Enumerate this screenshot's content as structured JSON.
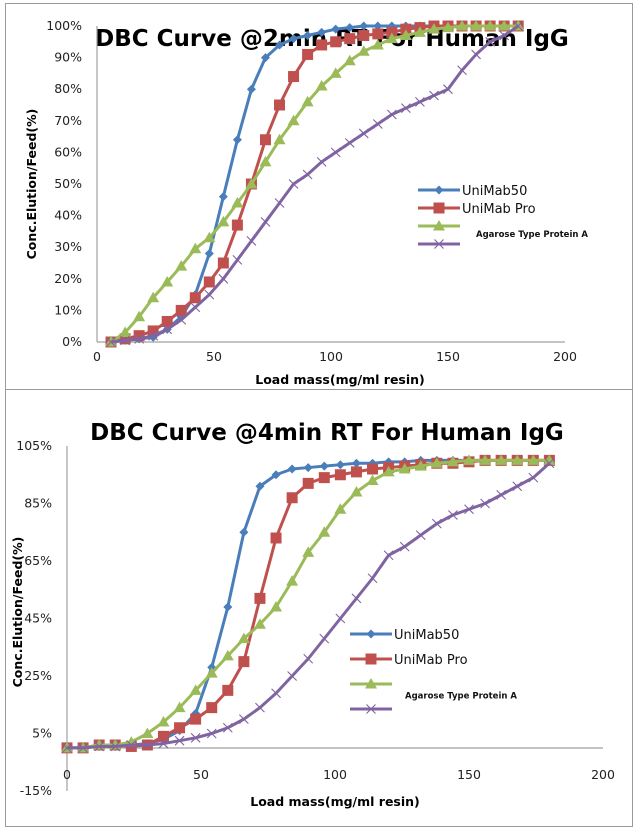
{
  "chart_data": [
    {
      "type": "line",
      "title": "DBC Curve @2min RT For Human IgG",
      "xlabel": "Load mass(mg/ml resin)",
      "ylabel": "Conc.Elution/Feed(%)",
      "xlim": [
        0,
        200
      ],
      "ylim": [
        0,
        100
      ],
      "xticks": [
        "0",
        "50",
        "100",
        "150",
        "200"
      ],
      "yticks": [
        "0%",
        "10%",
        "20%",
        "30%",
        "40%",
        "50%",
        "60%",
        "70%",
        "80%",
        "90%",
        "100%"
      ],
      "grid": false,
      "legend": "center-right",
      "x": [
        6,
        12,
        18,
        24,
        30,
        36,
        42,
        48,
        54,
        60,
        66,
        72,
        78,
        84,
        90,
        96,
        102,
        108,
        114,
        120,
        126,
        132,
        138,
        144,
        150,
        156,
        162,
        168,
        174,
        180
      ],
      "series": [
        {
          "name": "UniMab50",
          "color": "#4a7ebb",
          "marker": "diamond",
          "values": [
            0,
            0.5,
            1,
            1.5,
            4,
            8,
            15,
            28,
            46,
            64,
            80,
            90,
            94,
            96,
            97,
            98,
            99,
            99.5,
            100,
            100,
            100,
            100,
            100,
            100,
            100,
            100,
            100,
            100,
            100,
            100
          ]
        },
        {
          "name": "UniMab Pro",
          "color": "#c0504d",
          "marker": "square",
          "values": [
            0,
            1,
            2,
            3.5,
            6.5,
            10,
            14,
            19,
            25,
            37,
            50,
            64,
            75,
            84,
            91,
            94,
            95,
            96,
            97,
            97.5,
            98,
            99,
            99.5,
            100,
            100,
            100,
            100,
            100,
            100,
            100
          ]
        },
        {
          "name": "",
          "color": "#9bbb59",
          "marker": "triangle",
          "values": [
            0,
            3,
            8,
            14,
            19,
            24,
            29.5,
            33,
            38,
            44,
            50,
            57,
            64,
            70,
            76,
            81,
            85,
            89,
            92,
            94,
            96,
            97,
            98,
            99,
            99.5,
            100,
            100,
            100,
            100,
            100
          ]
        },
        {
          "name": "Agarose Type Protein A",
          "color": "#8064a2",
          "marker": "x",
          "values": [
            0,
            0.5,
            1,
            2,
            4,
            7,
            11,
            15,
            20,
            26,
            32,
            38,
            44,
            50,
            53,
            57,
            60,
            63,
            66,
            69,
            72,
            74,
            76,
            78,
            80,
            86,
            91,
            95,
            97,
            100
          ]
        }
      ]
    },
    {
      "type": "line",
      "title": "DBC Curve @4min RT For Human IgG",
      "xlabel": "Load mass(mg/ml resin)",
      "ylabel": "Conc.Elution/Feed(%)",
      "xlim": [
        0,
        200
      ],
      "ylim": [
        -15,
        105
      ],
      "xticks": [
        "0",
        "50",
        "100",
        "150",
        "200"
      ],
      "yticks": [
        "-15%",
        "5%",
        "25%",
        "45%",
        "65%",
        "85%",
        "105%"
      ],
      "grid": false,
      "legend": "center-right",
      "x": [
        0,
        6,
        12,
        18,
        24,
        30,
        36,
        42,
        48,
        54,
        60,
        66,
        72,
        78,
        84,
        90,
        96,
        102,
        108,
        114,
        120,
        126,
        132,
        138,
        144,
        150,
        156,
        162,
        168,
        174,
        180
      ],
      "series": [
        {
          "name": "UniMab50",
          "color": "#4a7ebb",
          "marker": "diamond",
          "values": [
            0,
            0,
            0.5,
            0.5,
            1,
            1.5,
            3,
            6,
            12,
            28,
            49,
            75,
            91,
            95,
            97,
            97.5,
            98,
            98.5,
            99,
            99,
            99.5,
            99.5,
            100,
            100,
            100,
            100,
            100,
            100,
            100,
            100,
            100
          ]
        },
        {
          "name": "UniMab Pro",
          "color": "#c0504d",
          "marker": "square",
          "values": [
            0,
            0,
            1,
            1,
            0.5,
            1,
            4,
            7,
            10,
            14,
            20,
            30,
            52,
            73,
            87,
            92,
            94,
            95,
            96,
            97,
            97.5,
            98,
            98.5,
            99,
            99,
            99.5,
            100,
            100,
            100,
            100,
            100
          ]
        },
        {
          "name": "",
          "color": "#9bbb59",
          "marker": "triangle",
          "values": [
            0,
            0,
            1,
            1,
            2,
            5,
            9,
            14,
            20,
            26,
            32,
            38,
            43,
            49,
            58,
            68,
            75,
            83,
            89,
            93,
            96,
            97,
            98,
            99,
            99.5,
            100,
            100,
            100,
            100,
            100,
            100
          ]
        },
        {
          "name": "Agarose Type Protein A",
          "color": "#8064a2",
          "marker": "x",
          "values": [
            0,
            0,
            0.5,
            0.5,
            1,
            1,
            1.5,
            2.5,
            3.5,
            5,
            7,
            10,
            14,
            19,
            25,
            31,
            38,
            45,
            52,
            59,
            67,
            70,
            74,
            78,
            81,
            83,
            85,
            88,
            91,
            94,
            99
          ]
        }
      ]
    }
  ]
}
